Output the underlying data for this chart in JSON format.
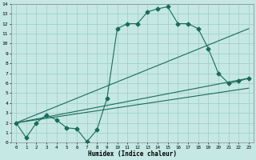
{
  "title": "",
  "xlabel": "Humidex (Indice chaleur)",
  "bg_color": "#c5e8e5",
  "grid_color": "#9eccc8",
  "line_color": "#1a6b5a",
  "xlim": [
    -0.5,
    23.5
  ],
  "ylim": [
    0,
    14
  ],
  "xticks": [
    0,
    1,
    2,
    3,
    4,
    5,
    6,
    7,
    8,
    9,
    10,
    11,
    12,
    13,
    14,
    15,
    16,
    17,
    18,
    19,
    20,
    21,
    22,
    23
  ],
  "yticks": [
    0,
    1,
    2,
    3,
    4,
    5,
    6,
    7,
    8,
    9,
    10,
    11,
    12,
    13,
    14
  ],
  "line1_x": [
    0,
    1,
    2,
    3,
    4,
    5,
    6,
    7,
    8,
    9,
    10,
    11,
    12,
    13,
    14,
    15,
    16,
    17,
    18,
    19,
    20,
    21,
    22,
    23
  ],
  "line1_y": [
    2.0,
    0.5,
    2.0,
    2.8,
    2.3,
    1.5,
    1.4,
    0.1,
    1.3,
    4.5,
    11.5,
    12.0,
    12.0,
    13.2,
    13.5,
    13.7,
    12.0,
    12.0,
    11.5,
    9.5,
    7.0,
    6.0,
    6.2,
    6.5
  ],
  "line2_x": [
    0,
    23
  ],
  "line2_y": [
    2.0,
    11.5
  ],
  "line3_x": [
    0,
    23
  ],
  "line3_y": [
    2.0,
    6.5
  ],
  "line4_x": [
    0,
    23
  ],
  "line4_y": [
    2.0,
    5.5
  ]
}
